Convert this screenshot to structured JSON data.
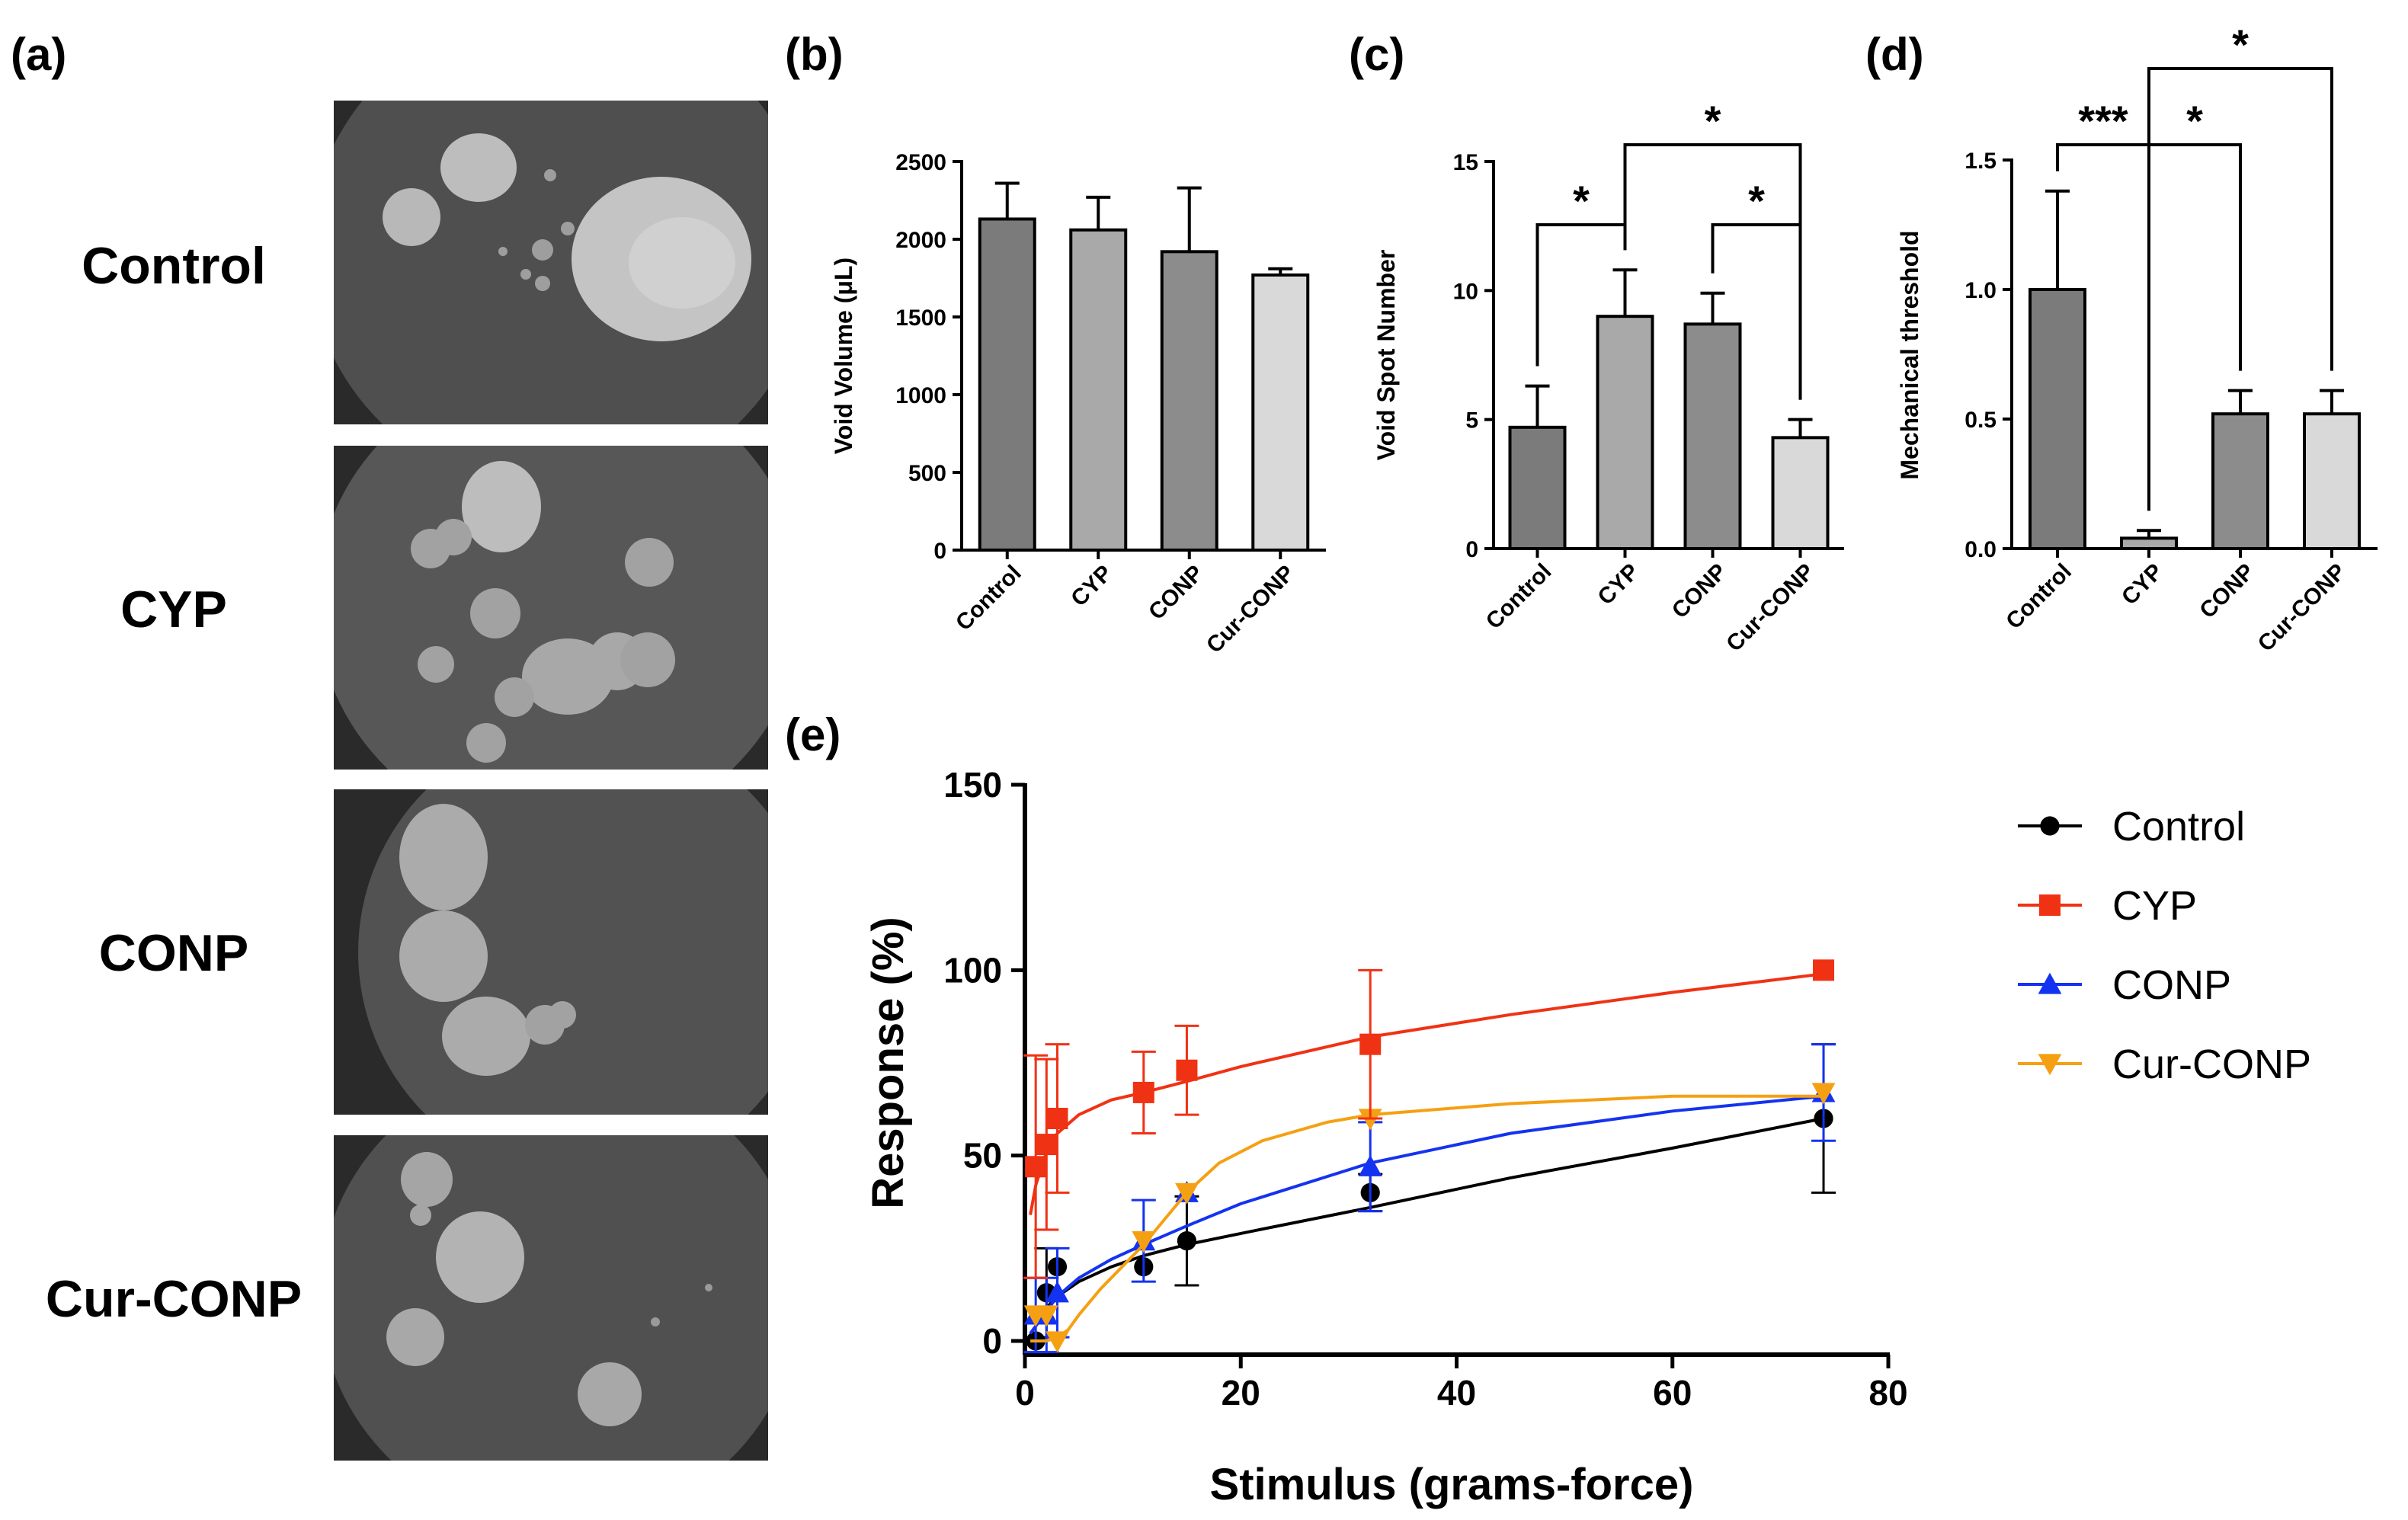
{
  "panel_letters": {
    "a": "(a)",
    "b": "(b)",
    "c": "(c)",
    "d": "(d)",
    "e": "(e)"
  },
  "panel_a": {
    "rows": [
      {
        "label": "Control"
      },
      {
        "label": "CYP"
      },
      {
        "label": "CONP"
      },
      {
        "label": "Cur-CONP"
      }
    ],
    "image_colors": {
      "background": "#3a3a3a",
      "dish": "#5a5a5a",
      "spot": "#b9b9b9",
      "edge": "#111111"
    }
  },
  "colors": {
    "bar_control": "#7b7b7b",
    "bar_cyp": "#a9a9a9",
    "bar_conp": "#8c8c8c",
    "bar_curconp": "#d9d9d9",
    "control": "#000000",
    "cyp": "#f03214",
    "conp": "#1433f0",
    "curconp": "#f5a012"
  },
  "chart_data": [
    {
      "id": "b",
      "type": "bar",
      "title": "",
      "categories": [
        "Control",
        "CYP",
        "CONP",
        "Cur-CONP"
      ],
      "values": [
        2130,
        2060,
        1920,
        1770
      ],
      "errors": [
        230,
        210,
        410,
        40
      ],
      "ylabel": "Void Volume (μL)",
      "xlabel": "",
      "ylim": [
        0,
        2500
      ],
      "yticks": [
        0,
        500,
        1000,
        1500,
        2000,
        2500
      ],
      "significance": []
    },
    {
      "id": "c",
      "type": "bar",
      "title": "",
      "categories": [
        "Control",
        "CYP",
        "CONP",
        "Cur-CONP"
      ],
      "values": [
        4.7,
        9.0,
        8.7,
        4.3
      ],
      "errors": [
        1.6,
        1.8,
        1.2,
        0.7
      ],
      "ylabel": "Void Spot Number",
      "xlabel": "",
      "ylim": [
        0,
        15
      ],
      "yticks": [
        0,
        5,
        10,
        15
      ],
      "significance": [
        {
          "from": 0,
          "to": 1,
          "label": "*"
        },
        {
          "from": 2,
          "to": 3,
          "label": "*"
        },
        {
          "from": 1,
          "to": 3,
          "label": "*"
        }
      ]
    },
    {
      "id": "d",
      "type": "bar",
      "title": "",
      "categories": [
        "Control",
        "CYP",
        "CONP",
        "Cur-CONP"
      ],
      "values": [
        1.0,
        0.04,
        0.52,
        0.52
      ],
      "errors": [
        0.38,
        0.03,
        0.09,
        0.09
      ],
      "ylabel": "Mechanical threshold",
      "xlabel": "",
      "ylim": [
        0,
        1.5
      ],
      "yticks": [
        "0.0",
        "0.5",
        "1.0",
        "1.5"
      ],
      "significance": [
        {
          "from": 0,
          "to": 1,
          "label": "***"
        },
        {
          "from": 1,
          "to": 2,
          "label": "*"
        },
        {
          "from": 1,
          "to": 3,
          "label": "*"
        }
      ]
    },
    {
      "id": "e",
      "type": "line",
      "title": "",
      "xlabel": "Stimulus (grams-force)",
      "ylabel": "Response (%)",
      "xlim": [
        0,
        80
      ],
      "ylim": [
        0,
        150
      ],
      "xticks": [
        0,
        20,
        40,
        60,
        80
      ],
      "yticks": [
        0,
        50,
        100,
        150
      ],
      "x": [
        1,
        2,
        3,
        11,
        15,
        32,
        74
      ],
      "series": [
        {
          "name": "Control",
          "marker": "circle",
          "values": [
            0,
            13,
            20,
            20,
            27,
            40,
            60
          ],
          "errors": [
            0,
            12,
            0,
            0,
            12,
            5,
            20
          ],
          "fit": [
            [
              0.5,
              2
            ],
            [
              1,
              4
            ],
            [
              2,
              9
            ],
            [
              3,
              12
            ],
            [
              5,
              16
            ],
            [
              8,
              20
            ],
            [
              11,
              23
            ],
            [
              15,
              26
            ],
            [
              20,
              29
            ],
            [
              32,
              36
            ],
            [
              45,
              44
            ],
            [
              60,
              52
            ],
            [
              74,
              60
            ]
          ]
        },
        {
          "name": "CYP",
          "marker": "square",
          "values": [
            47,
            53,
            60,
            67,
            73,
            80,
            100
          ],
          "errors": [
            30,
            23,
            20,
            11,
            12,
            20,
            0
          ],
          "fit": [
            [
              0.5,
              34
            ],
            [
              1,
              42
            ],
            [
              2,
              51
            ],
            [
              3,
              56
            ],
            [
              5,
              61
            ],
            [
              8,
              65
            ],
            [
              11,
              67
            ],
            [
              15,
              70
            ],
            [
              20,
              74
            ],
            [
              32,
              82
            ],
            [
              45,
              88
            ],
            [
              60,
              94
            ],
            [
              74,
              99
            ]
          ]
        },
        {
          "name": "CONP",
          "marker": "triangle-up",
          "values": [
            7,
            7,
            13,
            27,
            40,
            47,
            67
          ],
          "errors": [
            10,
            10,
            12,
            11,
            0,
            12,
            13
          ],
          "fit": [
            [
              0.5,
              2
            ],
            [
              1,
              4
            ],
            [
              2,
              8
            ],
            [
              3,
              12
            ],
            [
              5,
              17
            ],
            [
              8,
              22
            ],
            [
              11,
              26
            ],
            [
              15,
              31
            ],
            [
              20,
              37
            ],
            [
              32,
              48
            ],
            [
              45,
              56
            ],
            [
              60,
              62
            ],
            [
              74,
              66
            ]
          ]
        },
        {
          "name": "Cur-CONP",
          "marker": "triangle-down",
          "values": [
            7,
            7,
            0,
            27,
            40,
            60,
            67
          ],
          "errors": [
            0,
            0,
            0,
            0,
            0,
            0,
            0
          ],
          "fit": [
            [
              0.5,
              0
            ],
            [
              2,
              0
            ],
            [
              3,
              1
            ],
            [
              4,
              3
            ],
            [
              5,
              7
            ],
            [
              7,
              14
            ],
            [
              9,
              20
            ],
            [
              11,
              26
            ],
            [
              13,
              33
            ],
            [
              15,
              40
            ],
            [
              18,
              48
            ],
            [
              22,
              54
            ],
            [
              28,
              59
            ],
            [
              32,
              61
            ],
            [
              45,
              64
            ],
            [
              60,
              66
            ],
            [
              74,
              66
            ]
          ]
        }
      ]
    }
  ]
}
